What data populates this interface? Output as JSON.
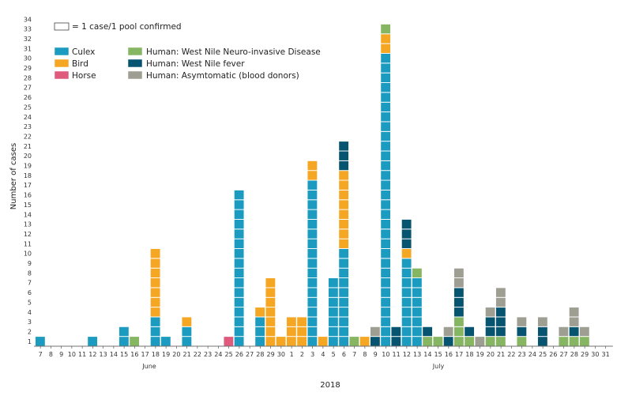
{
  "chart_data": {
    "type": "bar",
    "stacked": true,
    "ylabel": "Number of cases",
    "xlabel": "2018",
    "month_labels": [
      "June",
      "July"
    ],
    "unit_note": "= 1 case/1 pool confirmed",
    "ylim": [
      0,
      34
    ],
    "yticks": [
      1,
      2,
      3,
      4,
      5,
      6,
      7,
      8,
      9,
      10,
      11,
      12,
      13,
      14,
      15,
      16,
      17,
      18,
      19,
      20,
      21,
      22,
      23,
      24,
      25,
      26,
      27,
      28,
      29,
      30,
      31,
      32,
      33,
      34
    ],
    "grid": false,
    "legend_position": "top-left",
    "categories": [
      "7",
      "8",
      "9",
      "10",
      "11",
      "12",
      "13",
      "14",
      "15",
      "16",
      "17",
      "18",
      "19",
      "20",
      "21",
      "22",
      "23",
      "24",
      "25",
      "26",
      "27",
      "28",
      "29",
      "30",
      "1",
      "2",
      "3",
      "4",
      "5",
      "6",
      "7",
      "8",
      "9",
      "10",
      "11",
      "12",
      "13",
      "14",
      "15",
      "16",
      "17",
      "18",
      "19",
      "20",
      "21",
      "22",
      "23",
      "24",
      "25",
      "26",
      "27",
      "28",
      "29",
      "30",
      "31"
    ],
    "series": [
      {
        "name": "Culex",
        "color": "#1a9bbf",
        "values": [
          1,
          0,
          0,
          0,
          0,
          1,
          0,
          0,
          2,
          0,
          0,
          3,
          1,
          0,
          2,
          0,
          0,
          0,
          0,
          16,
          0,
          3,
          0,
          0,
          0,
          0,
          17,
          0,
          7,
          10,
          0,
          0,
          0,
          30,
          0,
          9,
          7,
          0,
          0,
          0,
          0,
          0,
          0,
          0,
          0,
          0,
          0,
          0,
          0,
          0,
          0,
          0,
          0,
          0,
          0
        ]
      },
      {
        "name": "Bird",
        "color": "#f5a623",
        "values": [
          0,
          0,
          0,
          0,
          0,
          0,
          0,
          0,
          0,
          0,
          0,
          7,
          0,
          0,
          1,
          0,
          0,
          0,
          0,
          0,
          0,
          1,
          7,
          1,
          3,
          3,
          2,
          1,
          0,
          8,
          0,
          1,
          0,
          2,
          0,
          1,
          0,
          0,
          0,
          0,
          0,
          0,
          0,
          0,
          0,
          0,
          0,
          0,
          0,
          0,
          0,
          0,
          0,
          0,
          0
        ]
      },
      {
        "name": "Horse",
        "color": "#e05a7e",
        "values": [
          0,
          0,
          0,
          0,
          0,
          0,
          0,
          0,
          0,
          0,
          0,
          0,
          0,
          0,
          0,
          0,
          0,
          0,
          1,
          0,
          0,
          0,
          0,
          0,
          0,
          0,
          0,
          0,
          0,
          0,
          0,
          0,
          0,
          0,
          0,
          0,
          0,
          0,
          0,
          0,
          0,
          0,
          0,
          0,
          0,
          0,
          0,
          0,
          0,
          0,
          0,
          0,
          0,
          0,
          0
        ]
      },
      {
        "name": "Human: West Nile Neuro-invasive Disease",
        "color": "#86b661",
        "values": [
          0,
          0,
          0,
          0,
          0,
          0,
          0,
          0,
          0,
          1,
          0,
          0,
          0,
          0,
          0,
          0,
          0,
          0,
          0,
          0,
          0,
          0,
          0,
          0,
          0,
          0,
          0,
          0,
          0,
          0,
          1,
          0,
          0,
          1,
          0,
          0,
          1,
          1,
          1,
          0,
          3,
          1,
          0,
          1,
          1,
          0,
          1,
          0,
          0,
          0,
          1,
          1,
          1,
          0,
          0
        ]
      },
      {
        "name": "Human: West Nile fever",
        "color": "#06546f",
        "values": [
          0,
          0,
          0,
          0,
          0,
          0,
          0,
          0,
          0,
          0,
          0,
          0,
          0,
          0,
          0,
          0,
          0,
          0,
          0,
          0,
          0,
          0,
          0,
          0,
          0,
          0,
          0,
          0,
          0,
          3,
          0,
          0,
          1,
          0,
          2,
          3,
          0,
          1,
          0,
          1,
          3,
          1,
          0,
          2,
          3,
          0,
          1,
          0,
          2,
          0,
          0,
          1,
          0,
          0,
          0
        ]
      },
      {
        "name": "Human: Asymtomatic (blood donors)",
        "color": "#9e9e93",
        "values": [
          0,
          0,
          0,
          0,
          0,
          0,
          0,
          0,
          0,
          0,
          0,
          0,
          0,
          0,
          0,
          0,
          0,
          0,
          0,
          0,
          0,
          0,
          0,
          0,
          0,
          0,
          0,
          0,
          0,
          0,
          0,
          0,
          1,
          0,
          0,
          0,
          0,
          0,
          0,
          1,
          2,
          0,
          1,
          1,
          2,
          0,
          1,
          0,
          1,
          0,
          1,
          2,
          1,
          0,
          0
        ]
      }
    ]
  }
}
